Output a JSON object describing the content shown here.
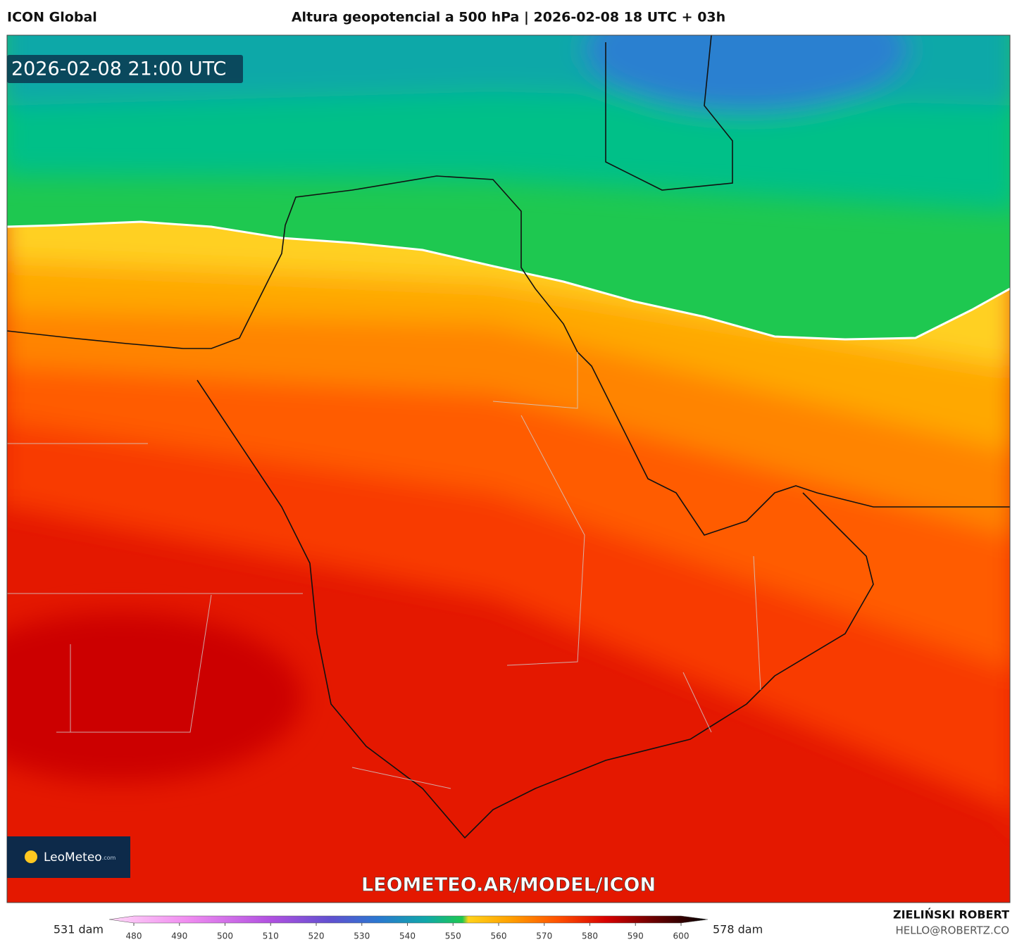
{
  "header": {
    "left": "ICON Global",
    "title": "Altura geopotencial a 500 hPa | 2026-02-08 18 UTC + 03h"
  },
  "map": {
    "timestamp": "2026-02-08 21:00 UTC",
    "logo": "LeoMeteo",
    "logo_suffix": ".com",
    "watermark": "LEOMETEO.AR/MODEL/ICON"
  },
  "colorbar": {
    "min_label": "531 dam",
    "max_label": "578 dam",
    "ticks": [
      480,
      490,
      500,
      510,
      520,
      530,
      540,
      550,
      560,
      570,
      580,
      590,
      600
    ]
  },
  "footer": {
    "author": "ZIELIŃSKI ROBERT",
    "email": "HELLO@ROBERTZ.CO"
  }
}
